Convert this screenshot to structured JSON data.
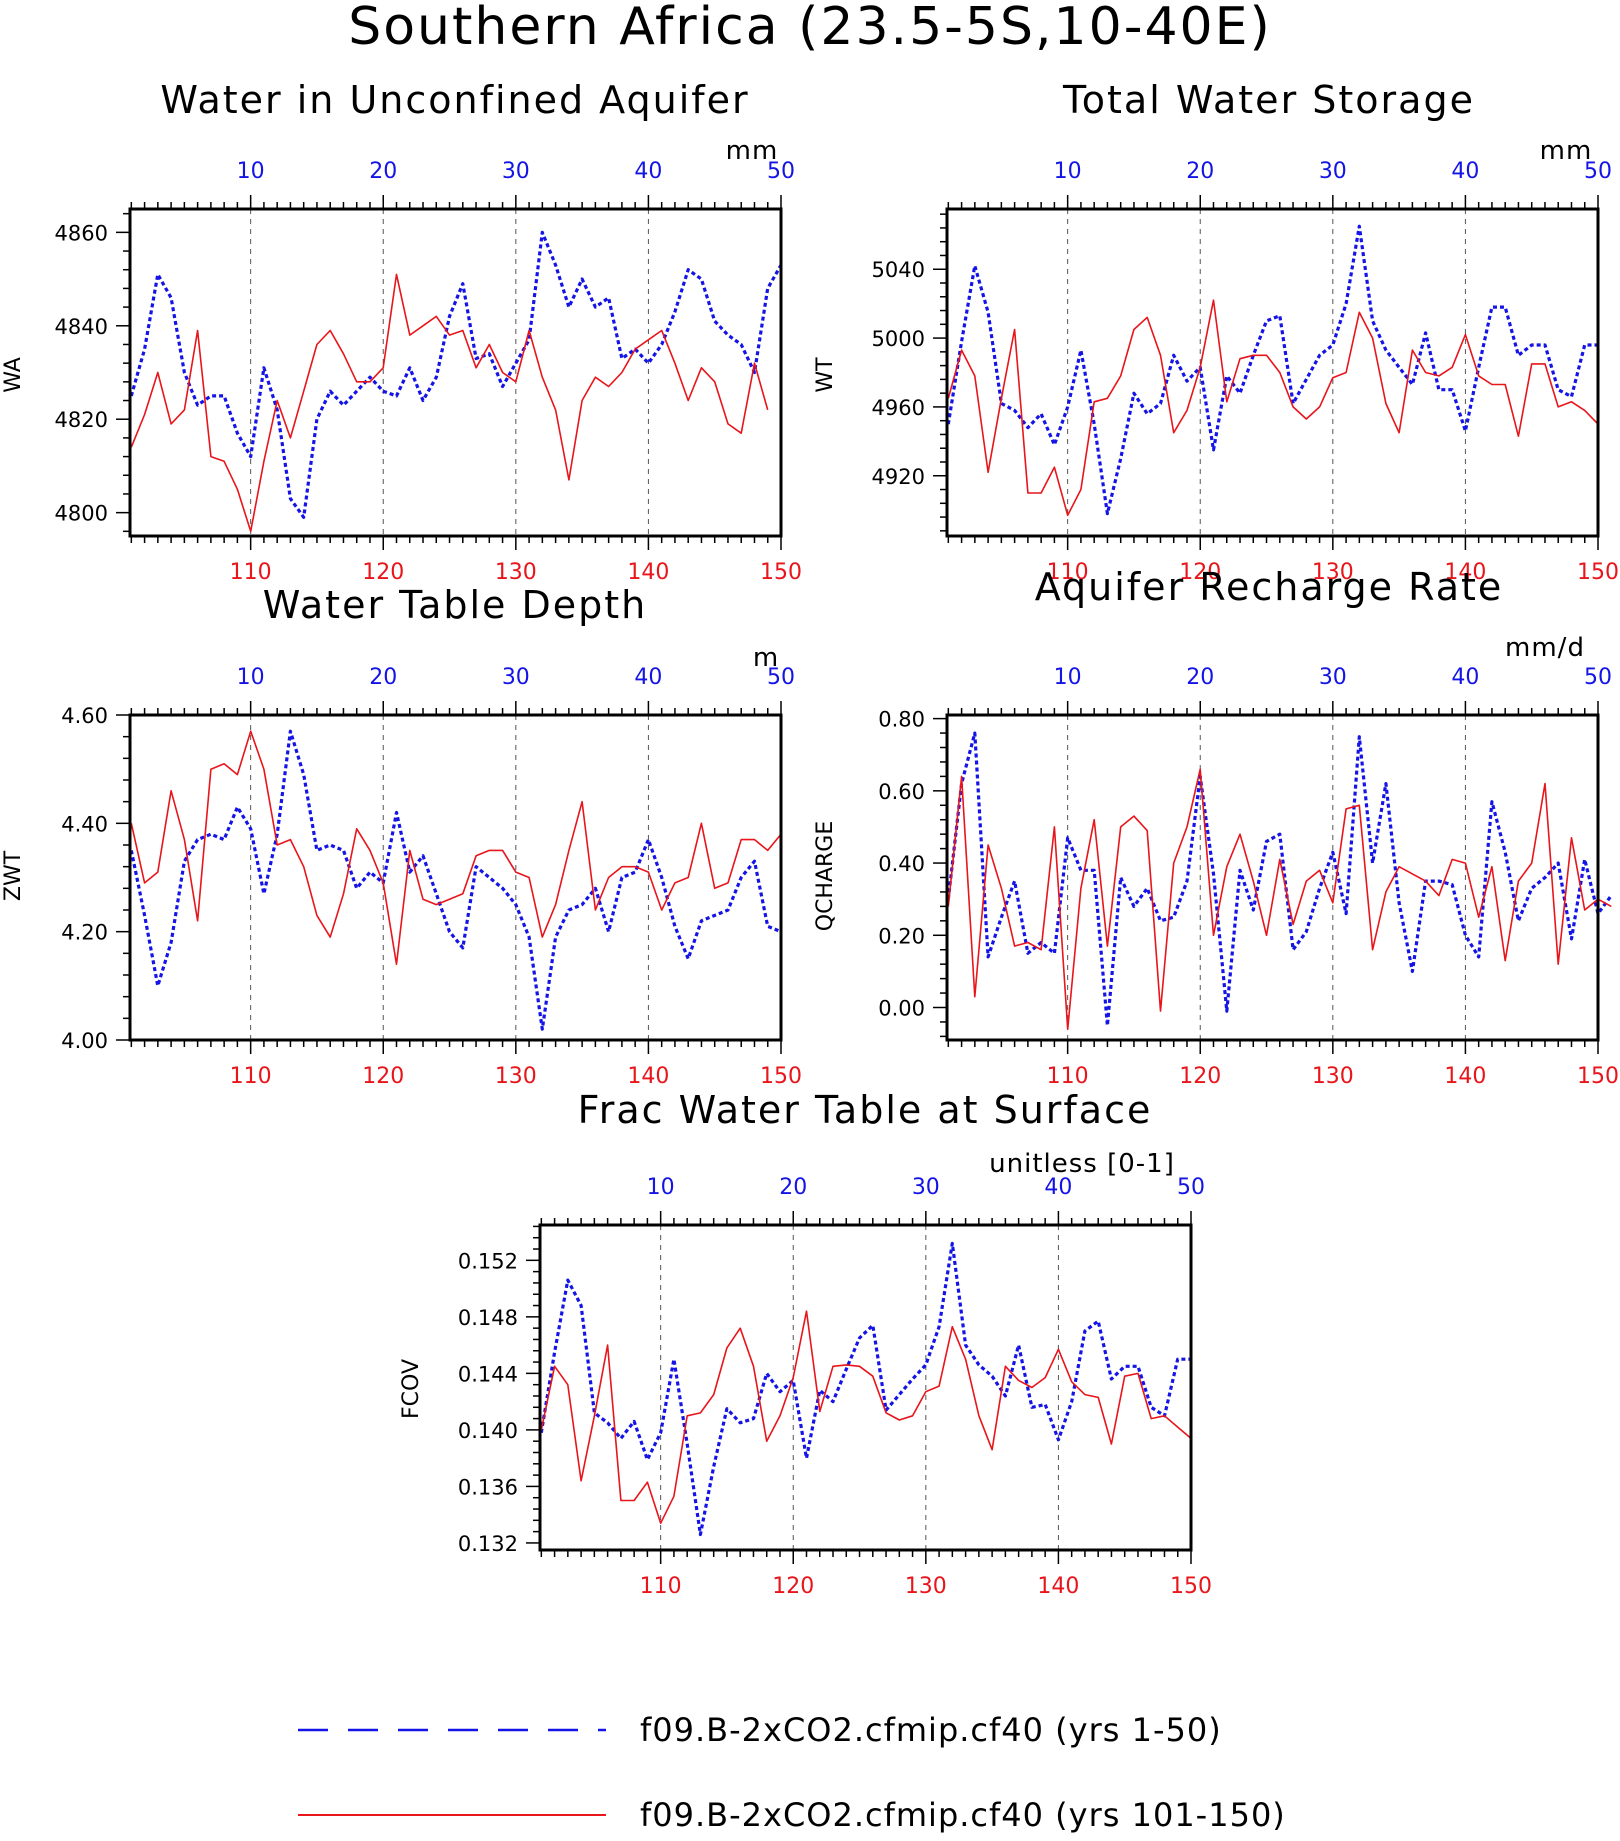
{
  "title": "Southern Africa (23.5-5S,10-40E)",
  "colors": {
    "series_a": "#1414e6",
    "series_b": "#e8151b",
    "axis": "#000000",
    "grid": "#555555"
  },
  "legend": [
    {
      "label": "f09.B-2xCO2.cfmip.cf40 (yrs 1-50)",
      "style": "dashed",
      "color": "#1414e6"
    },
    {
      "label": "f09.B-2xCO2.cfmip.cf40 (yrs 101-150)",
      "style": "solid",
      "color": "#e8151b"
    }
  ],
  "chart_data": [
    {
      "type": "line",
      "title": "Water in Unconfined Aquifer",
      "units": "mm",
      "ylabel": "WA",
      "ylim": [
        4795,
        4865
      ],
      "yticks": [
        4800,
        4820,
        4840,
        4860
      ],
      "ytick_labels": [
        "4800",
        "4820",
        "4840",
        "4860"
      ],
      "x_bottom_ticks": [
        "110",
        "120",
        "130",
        "140",
        "150"
      ],
      "x_top_ticks": [
        "10",
        "20",
        "30",
        "40",
        "50"
      ],
      "series": [
        {
          "x_axis": "top",
          "style": "dashed",
          "values": [
            4825,
            4835,
            4851,
            4846,
            4830,
            4823,
            4825,
            4825,
            4817,
            4812,
            4831,
            4822,
            4803,
            4799,
            4820,
            4826,
            4823,
            4826,
            4829,
            4826,
            4825,
            4831,
            4824,
            4829,
            4842,
            4849,
            4833,
            4834,
            4827,
            4832,
            4837,
            4860,
            4853,
            4844,
            4850,
            4844,
            4846,
            4833,
            4835,
            4832,
            4836,
            4843,
            4852,
            4850,
            4841,
            4838,
            4836,
            4830,
            4848,
            4853
          ]
        },
        {
          "x_axis": "bottom",
          "style": "solid",
          "values": [
            4814,
            4821,
            4830,
            4819,
            4822,
            4839,
            4812,
            4811,
            4805,
            4796,
            4811,
            4824,
            4816,
            4826,
            4836,
            4839,
            4834,
            4828,
            4828,
            4831,
            4851,
            4838,
            4840,
            4842,
            4838,
            4839,
            4831,
            4836,
            4830,
            4828,
            4839,
            4829,
            4822,
            4807,
            4824,
            4829,
            4827,
            4830,
            4835,
            4837,
            4839,
            4832,
            4824,
            4831,
            4828,
            4819,
            4817,
            4832,
            4822
          ]
        }
      ]
    },
    {
      "type": "line",
      "title": "Total Water Storage",
      "units": "mm",
      "ylabel": "WT",
      "ylim": [
        4885,
        5075
      ],
      "yticks": [
        4920,
        4960,
        5000,
        5040
      ],
      "ytick_labels": [
        "4920",
        "4960",
        "5000",
        "5040"
      ],
      "x_bottom_ticks": [
        "110",
        "120",
        "130",
        "140",
        "150"
      ],
      "x_top_ticks": [
        "10",
        "20",
        "30",
        "40",
        "50"
      ],
      "series": [
        {
          "x_axis": "top",
          "style": "dashed",
          "values": [
            4950,
            4998,
            5042,
            5015,
            4962,
            4958,
            4948,
            4956,
            4938,
            4960,
            4993,
            4950,
            4898,
            4930,
            4968,
            4956,
            4962,
            4990,
            4975,
            4983,
            4935,
            4978,
            4968,
            4990,
            5010,
            5013,
            4962,
            4976,
            4990,
            4996,
            5020,
            5065,
            5010,
            4993,
            4983,
            4973,
            5003,
            4970,
            4970,
            4946,
            4983,
            5018,
            5018,
            4990,
            4996,
            4996,
            4970,
            4966,
            4996,
            4996
          ]
        },
        {
          "x_axis": "bottom",
          "style": "solid",
          "values": [
            4965,
            4993,
            4978,
            4922,
            4965,
            5005,
            4910,
            4910,
            4925,
            4897,
            4912,
            4963,
            4965,
            4978,
            5005,
            5012,
            4990,
            4945,
            4958,
            4983,
            5022,
            4963,
            4988,
            4990,
            4990,
            4980,
            4960,
            4953,
            4960,
            4977,
            4980,
            5015,
            5000,
            4962,
            4945,
            4993,
            4980,
            4978,
            4983,
            5002,
            4978,
            4973,
            4973,
            4943,
            4985,
            4985,
            4960,
            4963,
            4958,
            4950
          ]
        }
      ]
    },
    {
      "type": "line",
      "title": "Water Table Depth",
      "units": "m",
      "ylabel": "ZWT",
      "ylim": [
        4.0,
        4.6
      ],
      "yticks": [
        4.0,
        4.2,
        4.4,
        4.6
      ],
      "ytick_labels": [
        "4.00",
        "4.20",
        "4.40",
        "4.60"
      ],
      "x_bottom_ticks": [
        "110",
        "120",
        "130",
        "140",
        "150"
      ],
      "x_top_ticks": [
        "10",
        "20",
        "30",
        "40",
        "50"
      ],
      "series": [
        {
          "x_axis": "top",
          "style": "dashed",
          "values": [
            4.35,
            4.23,
            4.1,
            4.18,
            4.33,
            4.37,
            4.38,
            4.37,
            4.43,
            4.39,
            4.27,
            4.38,
            4.57,
            4.49,
            4.35,
            4.36,
            4.35,
            4.28,
            4.31,
            4.29,
            4.42,
            4.31,
            4.34,
            4.27,
            4.2,
            4.17,
            4.32,
            4.3,
            4.28,
            4.25,
            4.19,
            4.02,
            4.19,
            4.24,
            4.25,
            4.28,
            4.2,
            4.3,
            4.31,
            4.37,
            4.3,
            4.21,
            4.15,
            4.22,
            4.23,
            4.24,
            4.3,
            4.33,
            4.21,
            4.2
          ]
        },
        {
          "x_axis": "bottom",
          "style": "solid",
          "values": [
            4.4,
            4.29,
            4.31,
            4.46,
            4.37,
            4.22,
            4.5,
            4.51,
            4.49,
            4.57,
            4.5,
            4.36,
            4.37,
            4.32,
            4.23,
            4.19,
            4.27,
            4.39,
            4.35,
            4.29,
            4.14,
            4.35,
            4.26,
            4.25,
            4.26,
            4.27,
            4.34,
            4.35,
            4.35,
            4.31,
            4.3,
            4.19,
            4.25,
            4.35,
            4.44,
            4.24,
            4.3,
            4.32,
            4.32,
            4.31,
            4.24,
            4.29,
            4.3,
            4.4,
            4.28,
            4.29,
            4.37,
            4.37,
            4.35,
            4.38
          ]
        }
      ]
    },
    {
      "type": "line",
      "title": "Aquifer Recharge Rate",
      "units": "mm/d",
      "ylabel": "QCHARGE",
      "ylim": [
        -0.09,
        0.81
      ],
      "yticks": [
        0.0,
        0.2,
        0.4,
        0.6,
        0.8
      ],
      "ytick_labels": [
        "0.00",
        "0.20",
        "0.40",
        "0.60",
        "0.80"
      ],
      "x_bottom_ticks": [
        "110",
        "120",
        "130",
        "140",
        "150"
      ],
      "x_top_ticks": [
        "10",
        "20",
        "30",
        "40",
        "50"
      ],
      "series": [
        {
          "x_axis": "top",
          "style": "dashed",
          "values": [
            0.3,
            0.62,
            0.76,
            0.14,
            0.25,
            0.35,
            0.15,
            0.18,
            0.15,
            0.47,
            0.38,
            0.38,
            -0.05,
            0.36,
            0.28,
            0.33,
            0.24,
            0.25,
            0.35,
            0.64,
            0.37,
            -0.01,
            0.38,
            0.27,
            0.46,
            0.48,
            0.16,
            0.21,
            0.33,
            0.43,
            0.26,
            0.75,
            0.4,
            0.62,
            0.29,
            0.1,
            0.35,
            0.35,
            0.34,
            0.2,
            0.14,
            0.57,
            0.43,
            0.24,
            0.33,
            0.36,
            0.4,
            0.19,
            0.41,
            0.26,
            0.31
          ]
        },
        {
          "x_axis": "bottom",
          "style": "solid",
          "values": [
            0.28,
            0.64,
            0.03,
            0.45,
            0.33,
            0.17,
            0.18,
            0.16,
            0.5,
            -0.06,
            0.33,
            0.52,
            0.17,
            0.5,
            0.53,
            0.49,
            -0.01,
            0.4,
            0.5,
            0.66,
            0.2,
            0.39,
            0.48,
            0.35,
            0.2,
            0.41,
            0.23,
            0.35,
            0.38,
            0.29,
            0.55,
            0.56,
            0.16,
            0.32,
            0.39,
            0.37,
            0.35,
            0.31,
            0.41,
            0.4,
            0.25,
            0.39,
            0.13,
            0.35,
            0.4,
            0.62,
            0.12,
            0.47,
            0.27,
            0.3,
            0.28
          ]
        }
      ]
    },
    {
      "type": "line",
      "title": "Frac Water Table at Surface",
      "units": "unitless [0-1]",
      "ylabel": "FCOV",
      "ylim": [
        0.1315,
        0.1545
      ],
      "yticks": [
        0.132,
        0.136,
        0.14,
        0.144,
        0.148,
        0.152
      ],
      "ytick_labels": [
        "0.132",
        "0.136",
        "0.140",
        "0.144",
        "0.148",
        "0.152"
      ],
      "x_bottom_ticks": [
        "110",
        "120",
        "130",
        "140",
        "150"
      ],
      "x_top_ticks": [
        "10",
        "20",
        "30",
        "40",
        "50"
      ],
      "series": [
        {
          "x_axis": "top",
          "style": "dashed",
          "values": [
            0.1398,
            0.1455,
            0.1506,
            0.1488,
            0.1412,
            0.1405,
            0.1394,
            0.1406,
            0.1379,
            0.1398,
            0.145,
            0.139,
            0.1326,
            0.1374,
            0.1415,
            0.1405,
            0.1408,
            0.144,
            0.1427,
            0.1435,
            0.138,
            0.1428,
            0.142,
            0.1443,
            0.1465,
            0.1474,
            0.1414,
            0.1425,
            0.1436,
            0.1446,
            0.1473,
            0.1532,
            0.146,
            0.1446,
            0.1438,
            0.1424,
            0.146,
            0.1416,
            0.1418,
            0.1393,
            0.142,
            0.147,
            0.1477,
            0.1436,
            0.1445,
            0.1445,
            0.1416,
            0.141,
            0.145,
            0.145
          ]
        },
        {
          "x_axis": "bottom",
          "style": "solid",
          "values": [
            0.14,
            0.1445,
            0.1432,
            0.1364,
            0.141,
            0.146,
            0.135,
            0.135,
            0.1363,
            0.1334,
            0.1353,
            0.141,
            0.1412,
            0.1425,
            0.1458,
            0.1472,
            0.1445,
            0.1392,
            0.141,
            0.1437,
            0.1484,
            0.1413,
            0.1445,
            0.1446,
            0.1445,
            0.1438,
            0.1412,
            0.1407,
            0.141,
            0.1427,
            0.1431,
            0.1473,
            0.145,
            0.141,
            0.1386,
            0.1445,
            0.1435,
            0.143,
            0.1437,
            0.1457,
            0.1434,
            0.1425,
            0.1423,
            0.139,
            0.1438,
            0.144,
            0.1408,
            0.141,
            0.1402,
            0.1394
          ]
        }
      ]
    }
  ]
}
